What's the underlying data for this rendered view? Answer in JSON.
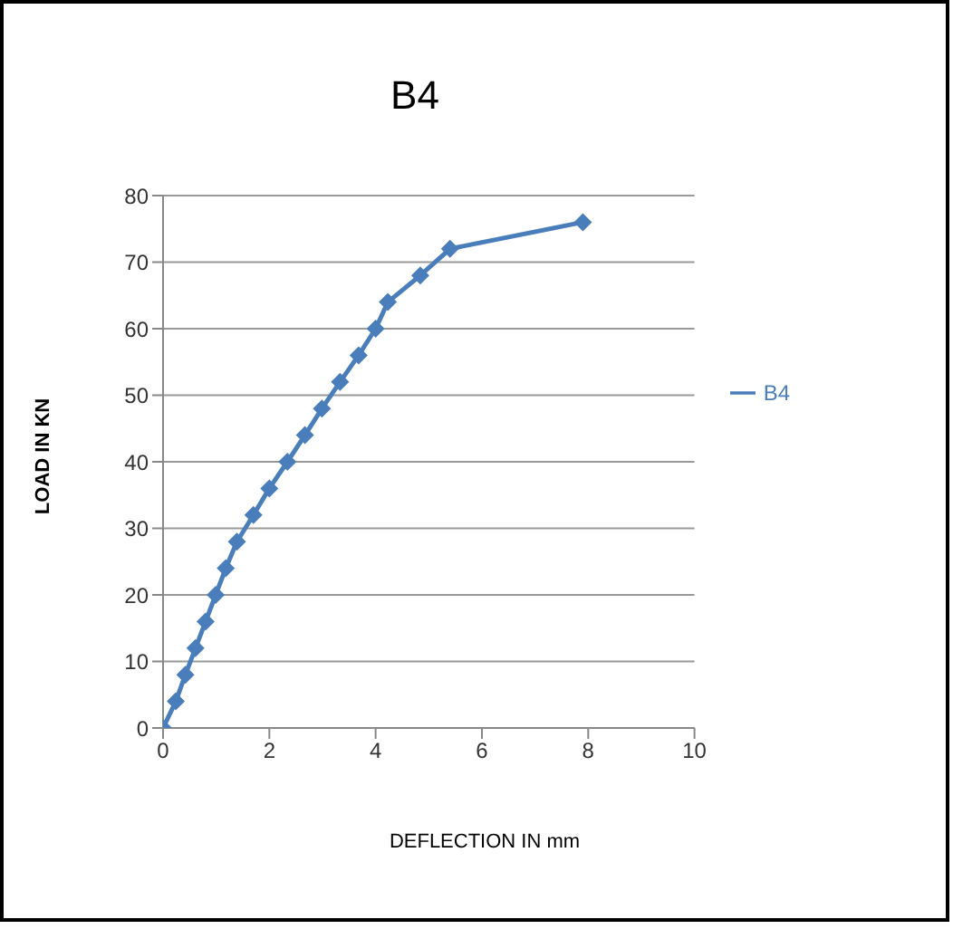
{
  "chart_data": {
    "type": "line",
    "title": "B4",
    "xlabel": "DEFLECTION IN mm",
    "ylabel": "LOAD IN KN",
    "x": [
      0,
      0.24,
      0.42,
      0.61,
      0.8,
      0.99,
      1.18,
      1.39,
      1.7,
      2.0,
      2.34,
      2.67,
      2.99,
      3.33,
      3.68,
      4.0,
      4.23,
      4.84,
      5.4,
      7.9
    ],
    "series": [
      {
        "name": "B4",
        "color": "#4a7ebb",
        "values": [
          0,
          4,
          8,
          12,
          16,
          20,
          24,
          28,
          32,
          36,
          40,
          44,
          48,
          52,
          56,
          60,
          64,
          68,
          72,
          76
        ]
      }
    ],
    "xlim": [
      0,
      10
    ],
    "xticks": [
      0,
      2,
      4,
      6,
      8,
      10
    ],
    "ylim": [
      0,
      80
    ],
    "yticks": [
      0,
      10,
      20,
      30,
      40,
      50,
      60,
      70,
      80
    ],
    "grid": "y",
    "legend": "right",
    "marker": "diamond",
    "line_style": "solid"
  }
}
